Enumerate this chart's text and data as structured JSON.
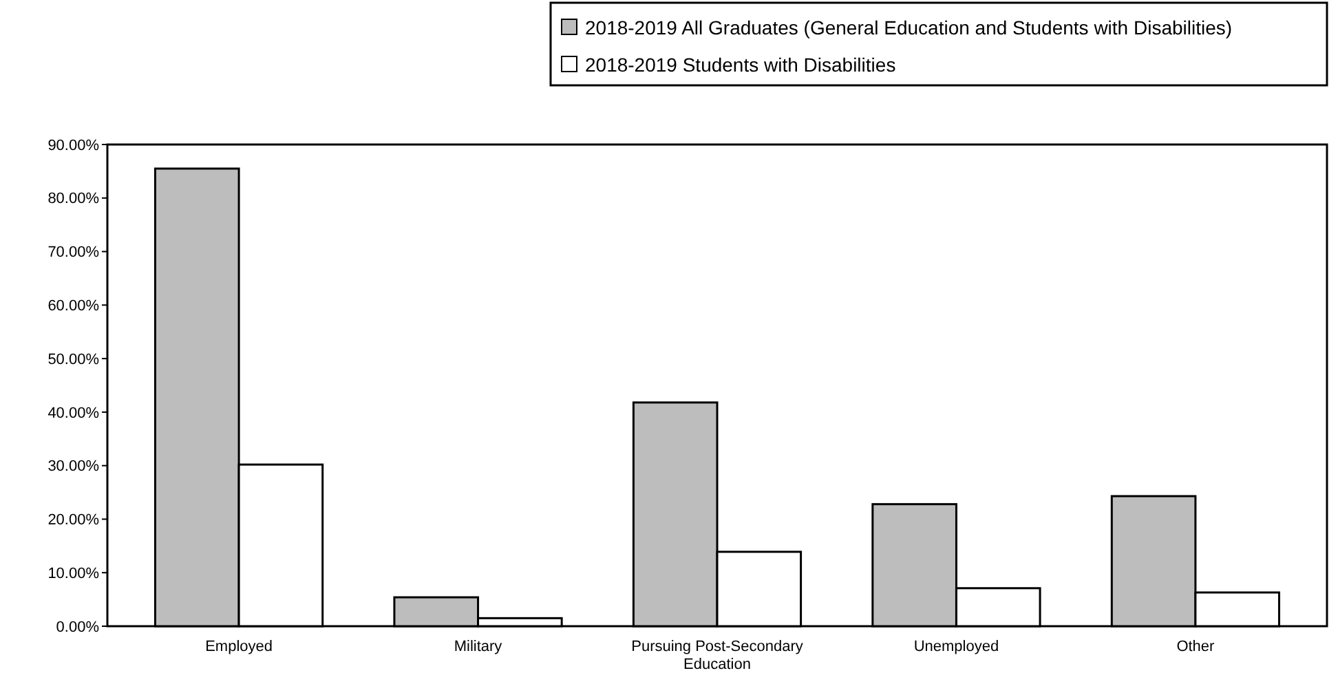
{
  "chart_data": {
    "type": "bar",
    "categories": [
      "Employed",
      "Military",
      "Pursuing Post-Secondary Education",
      "Unemployed",
      "Other"
    ],
    "series": [
      {
        "name": "2018-2019 All Graduates (General Education and Students with Disabilities)",
        "color": "#bdbdbd",
        "values": [
          85.5,
          5.4,
          41.8,
          22.8,
          24.3
        ]
      },
      {
        "name": "2018-2019 Students with Disabilities",
        "color": "#ffffff",
        "values": [
          30.2,
          1.5,
          13.9,
          7.1,
          6.3
        ]
      }
    ],
    "ylim": [
      0,
      90
    ],
    "yticks": [
      {
        "value": 0,
        "label": "0.00%"
      },
      {
        "value": 10,
        "label": "10.00%"
      },
      {
        "value": 20,
        "label": "20.00%"
      },
      {
        "value": 30,
        "label": "30.00%"
      },
      {
        "value": 40,
        "label": "40.00%"
      },
      {
        "value": 50,
        "label": "50.00%"
      },
      {
        "value": 60,
        "label": "60.00%"
      },
      {
        "value": 70,
        "label": "70.00%"
      },
      {
        "value": 80,
        "label": "80.00%"
      },
      {
        "value": 90,
        "label": "90.00%"
      }
    ],
    "grid": false,
    "legend": "top right"
  }
}
